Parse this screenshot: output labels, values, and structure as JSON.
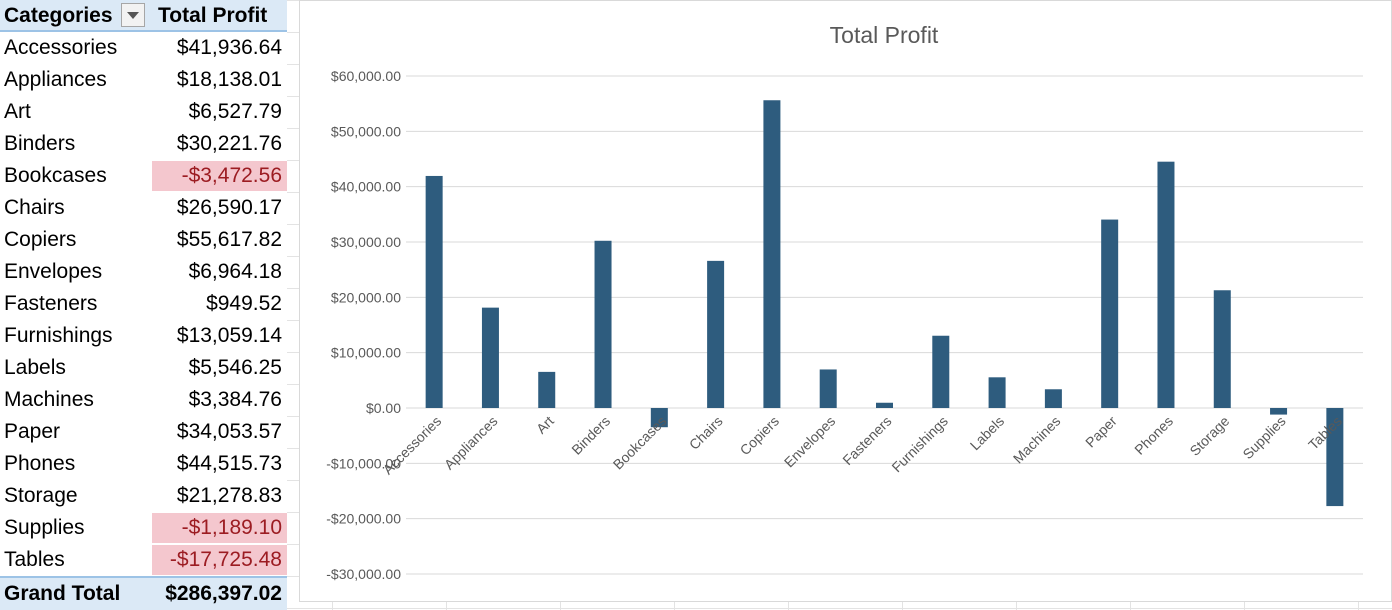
{
  "pivot": {
    "header_category": "Categories",
    "header_value": "Total Profit",
    "rows": [
      {
        "category": "Accessories",
        "value": "$41,936.64",
        "negative": false
      },
      {
        "category": "Appliances",
        "value": "$18,138.01",
        "negative": false
      },
      {
        "category": "Art",
        "value": "$6,527.79",
        "negative": false
      },
      {
        "category": "Binders",
        "value": "$30,221.76",
        "negative": false
      },
      {
        "category": "Bookcases",
        "value": "-$3,472.56",
        "negative": true
      },
      {
        "category": "Chairs",
        "value": "$26,590.17",
        "negative": false
      },
      {
        "category": "Copiers",
        "value": "$55,617.82",
        "negative": false
      },
      {
        "category": "Envelopes",
        "value": "$6,964.18",
        "negative": false
      },
      {
        "category": "Fasteners",
        "value": "$949.52",
        "negative": false
      },
      {
        "category": "Furnishings",
        "value": "$13,059.14",
        "negative": false
      },
      {
        "category": "Labels",
        "value": "$5,546.25",
        "negative": false
      },
      {
        "category": "Machines",
        "value": "$3,384.76",
        "negative": false
      },
      {
        "category": "Paper",
        "value": "$34,053.57",
        "negative": false
      },
      {
        "category": "Phones",
        "value": "$44,515.73",
        "negative": false
      },
      {
        "category": "Storage",
        "value": "$21,278.83",
        "negative": false
      },
      {
        "category": "Supplies",
        "value": "-$1,189.10",
        "negative": true
      },
      {
        "category": "Tables",
        "value": "-$17,725.48",
        "negative": true
      }
    ],
    "total_label": "Grand Total",
    "total_value": "$286,397.02"
  },
  "colors": {
    "bar": "#2e5c7e",
    "header_bg": "#dbe9f6",
    "negative_bg": "#f4c7ce",
    "negative_text": "#9c1c22"
  },
  "chart_data": {
    "type": "bar",
    "title": "Total Profit",
    "categories": [
      "Accessories",
      "Appliances",
      "Art",
      "Binders",
      "Bookcases",
      "Chairs",
      "Copiers",
      "Envelopes",
      "Fasteners",
      "Furnishings",
      "Labels",
      "Machines",
      "Paper",
      "Phones",
      "Storage",
      "Supplies",
      "Tables"
    ],
    "values": [
      41936.64,
      18138.01,
      6527.79,
      30221.76,
      -3472.56,
      26590.17,
      55617.82,
      6964.18,
      949.52,
      13059.14,
      5546.25,
      3384.76,
      34053.57,
      44515.73,
      21278.83,
      -1189.1,
      -17725.48
    ],
    "ylim": [
      -30000,
      60000
    ],
    "yticks": [
      60000,
      50000,
      40000,
      30000,
      20000,
      10000,
      0,
      -10000,
      -20000,
      -30000
    ],
    "ytick_labels": [
      "$60,000.00",
      "$50,000.00",
      "$40,000.00",
      "$30,000.00",
      "$20,000.00",
      "$10,000.00",
      "$0.00",
      "-$10,000.00",
      "-$20,000.00",
      "-$30,000.00"
    ],
    "grid": true,
    "legend": "none"
  }
}
